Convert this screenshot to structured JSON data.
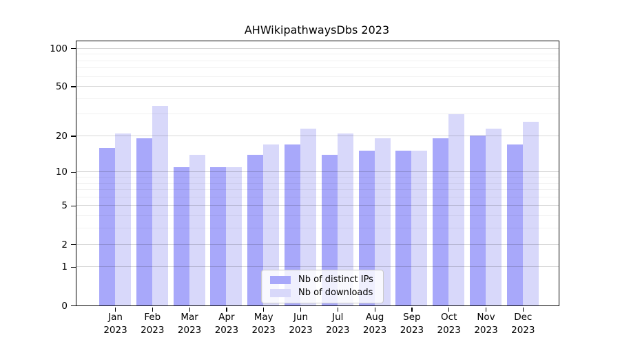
{
  "chart_data": {
    "type": "bar",
    "title": "AHWikipathwaysDbs 2023",
    "categories": [
      "Jan",
      "Feb",
      "Mar",
      "Apr",
      "May",
      "Jun",
      "Jul",
      "Aug",
      "Sep",
      "Oct",
      "Nov",
      "Dec"
    ],
    "year": "2023",
    "series": [
      {
        "name": "Nb of distinct IPs",
        "color": "#a8a8fa",
        "values": [
          16,
          19,
          11,
          11,
          14,
          17,
          14,
          15,
          15,
          19,
          20,
          17
        ]
      },
      {
        "name": "Nb of downloads",
        "color": "#d8d8fa",
        "values": [
          21,
          35,
          14,
          11,
          17,
          23,
          21,
          19,
          15,
          30,
          23,
          26
        ]
      }
    ],
    "xlabel": "",
    "ylabel": "",
    "y_axis": {
      "scale": "log1p",
      "ticks": [
        0,
        1,
        2,
        5,
        10,
        20,
        50,
        100
      ],
      "minor_gridlines": [
        3,
        4,
        6,
        7,
        8,
        9,
        30,
        40,
        60,
        70,
        80,
        90
      ],
      "ylim": [
        0,
        115
      ]
    },
    "grid": true,
    "legend_position": "bottom-center"
  }
}
